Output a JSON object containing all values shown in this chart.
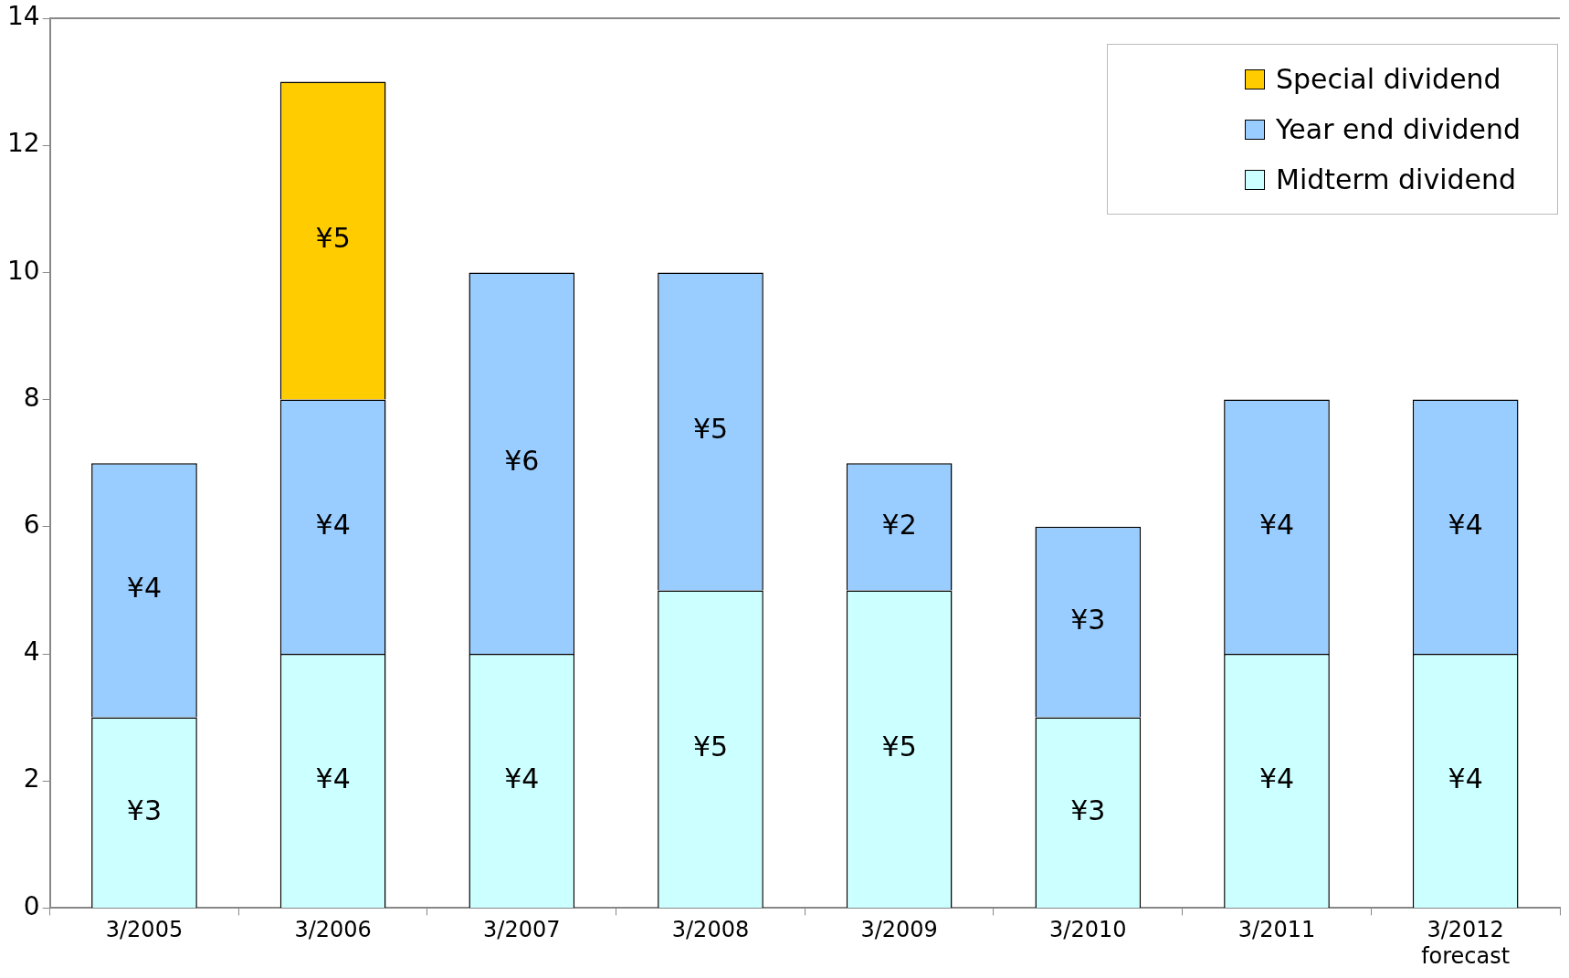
{
  "chart_data": {
    "type": "bar",
    "stacked": true,
    "categories": [
      "3/2005",
      "3/2006",
      "3/2007",
      "3/2008",
      "3/2009",
      "3/2010",
      "3/2011",
      "3/2012\nforecast"
    ],
    "series": [
      {
        "name": "Midterm dividend",
        "color": "#ccffff",
        "values": [
          3,
          4,
          4,
          5,
          5,
          3,
          4,
          4
        ],
        "value_labels": [
          "¥3",
          "¥4",
          "¥4",
          "¥5",
          "¥5",
          "¥3",
          "¥4",
          "¥4"
        ]
      },
      {
        "name": "Year end dividend",
        "color": "#99ccff",
        "values": [
          4,
          4,
          6,
          5,
          2,
          3,
          4,
          4
        ],
        "value_labels": [
          "¥4",
          "¥4",
          "¥6",
          "¥5",
          "¥2",
          "¥3",
          "¥4",
          "¥4"
        ]
      },
      {
        "name": "Special dividend",
        "color": "#ffcc00",
        "values": [
          null,
          5,
          null,
          null,
          null,
          null,
          null,
          null
        ],
        "value_labels": [
          null,
          "¥5",
          null,
          null,
          null,
          null,
          null,
          null
        ]
      }
    ],
    "ylim": [
      0,
      14
    ],
    "yticks": [
      0,
      2,
      4,
      6,
      8,
      10,
      12,
      14
    ],
    "legend": "top right"
  }
}
